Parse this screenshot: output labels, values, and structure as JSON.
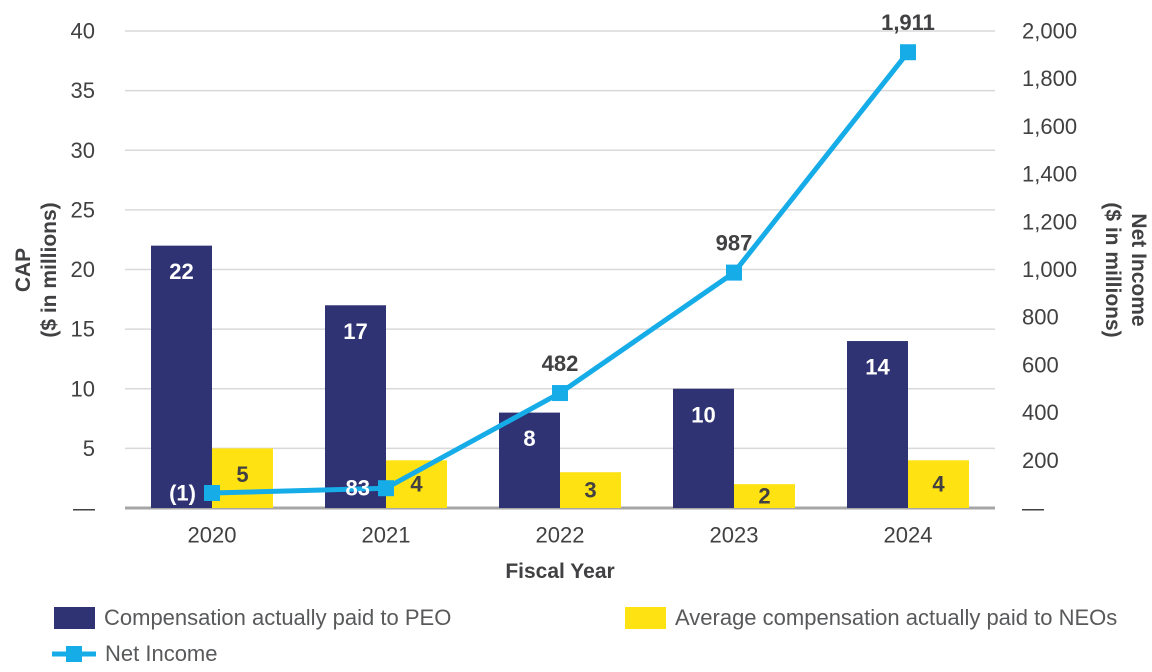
{
  "chart_data": {
    "type": "bar+line combo",
    "categories": [
      "2020",
      "2021",
      "2022",
      "2023",
      "2024"
    ],
    "series": [
      {
        "id": "peo",
        "name": "Compensation actually paid to PEO",
        "kind": "bar",
        "axis": "left",
        "color": "#2f3273",
        "label_color": "#ffffff",
        "values": [
          22,
          17,
          8,
          10,
          14
        ],
        "labels": [
          "22",
          "17",
          "8",
          "10",
          "14"
        ]
      },
      {
        "id": "neo",
        "name": "Average compensation actually paid to NEOs",
        "kind": "bar",
        "axis": "left",
        "color": "#ffe212",
        "label_color": "#414042",
        "values": [
          5,
          4,
          3,
          2,
          4
        ],
        "labels": [
          "5",
          "4",
          "3",
          "2",
          "4"
        ]
      },
      {
        "id": "net-income",
        "name": "Net Income",
        "kind": "line",
        "axis": "right",
        "color": "#16ace8",
        "values": [
          -1,
          83,
          482,
          987,
          1911
        ],
        "labels": [
          "(1)",
          "83",
          "482",
          "987",
          "1,911"
        ],
        "label_placements": [
          "left",
          "left",
          "above",
          "above",
          "above"
        ],
        "label_colors": [
          "#ffffff",
          "#ffffff",
          "#414042",
          "#414042",
          "#414042"
        ]
      }
    ],
    "x_axis": {
      "title": "Fiscal Year"
    },
    "left_axis": {
      "title_lines": [
        "CAP",
        "($ in millions)"
      ],
      "min": 0,
      "max": 40,
      "step": 5,
      "tick_labels": [
        "40",
        "35",
        "30",
        "25",
        "20",
        "15",
        "10",
        "5",
        "—"
      ]
    },
    "right_axis": {
      "title_lines": [
        "Net Income",
        "($ in millions)"
      ],
      "min": 0,
      "max": 2000,
      "step": 200,
      "tick_labels": [
        "2,000",
        "1,800",
        "1,600",
        "1,400",
        "1,200",
        "1,000",
        "800",
        "600",
        "400",
        "200",
        "—"
      ]
    },
    "grid": true,
    "legend_position": "bottom-left two-column",
    "style": {
      "grid_color": "#d9d9d9",
      "axis_line_color": "#a6a6a6",
      "text_color": "#414042",
      "legend_text_color": "#58595b",
      "background": "#ffffff"
    }
  }
}
